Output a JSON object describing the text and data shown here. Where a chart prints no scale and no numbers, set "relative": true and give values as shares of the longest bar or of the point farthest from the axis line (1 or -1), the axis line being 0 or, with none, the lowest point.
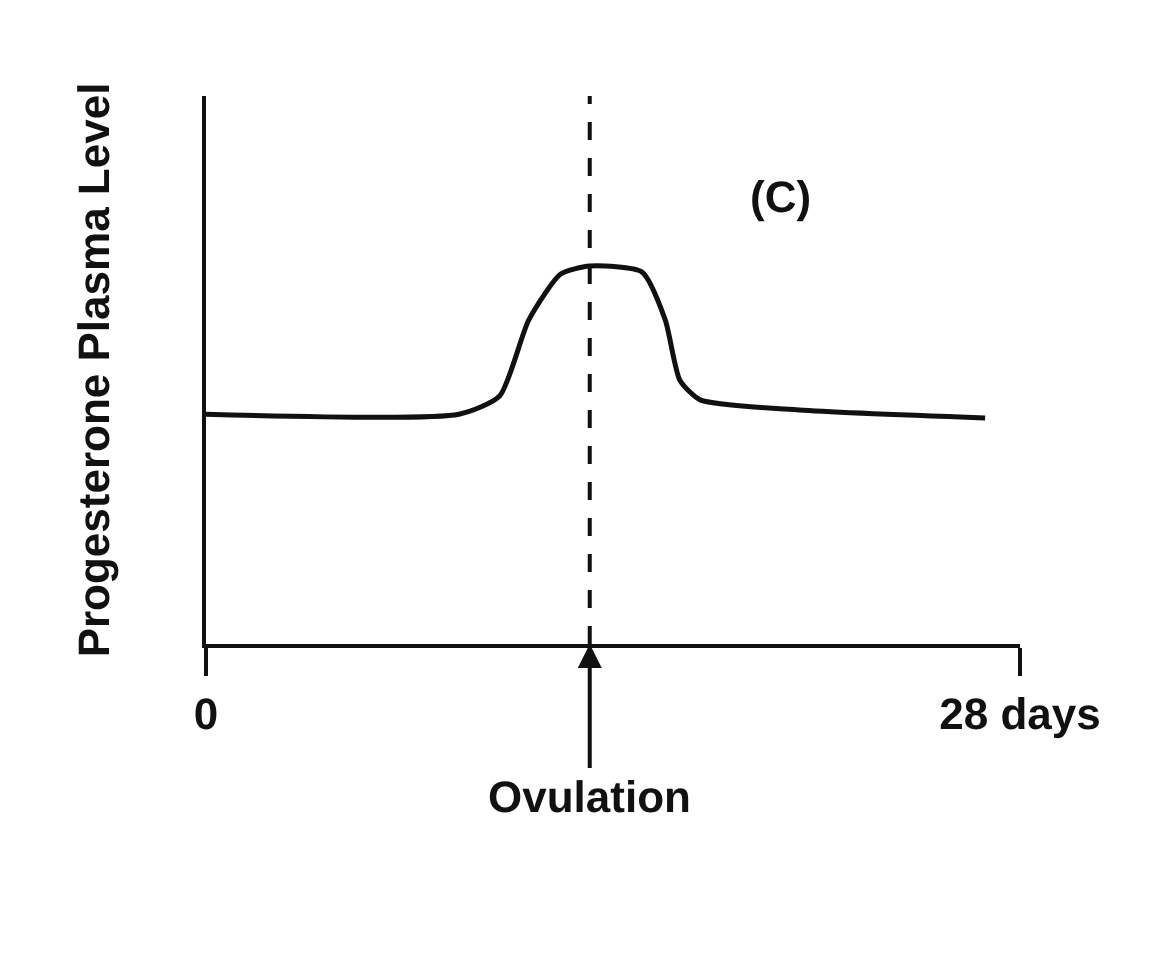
{
  "chart_data": {
    "type": "line",
    "relative": true,
    "ylabel": "Progesterone Plasma Level",
    "xlim": [
      0,
      28
    ],
    "xticks": [
      {
        "value": 0,
        "label": "0"
      },
      {
        "value": 28,
        "label": "28 days"
      }
    ],
    "x": [
      0,
      8.7,
      10.1,
      11.1,
      12.2,
      13.2,
      15.0,
      15.8,
      16.3,
      17.0,
      20.4,
      26.8
    ],
    "series": [
      {
        "color": "#111111",
        "values": [
          0.608,
          0.608,
          0.656,
          0.857,
          0.979,
          1,
          0.984,
          0.857,
          0.698,
          0.646,
          0.619,
          0.598
        ]
      }
    ],
    "ref_lines": [
      {
        "axis": "x",
        "value": 13.2,
        "label": "Ovulation",
        "line_style": "dashed",
        "color": "#111111"
      }
    ],
    "annotations": [
      "(C)"
    ],
    "marker": "none",
    "line_style": "solid"
  }
}
